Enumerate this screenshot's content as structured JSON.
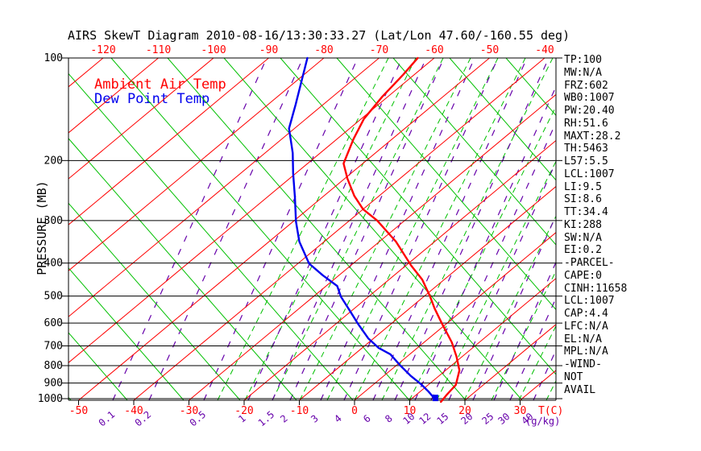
{
  "title": "AIRS SkewT Diagram 2010-08-16/13:30:33.27 (Lat/Lon 47.60/-160.55 deg)",
  "colors": {
    "red": "#ff0000",
    "green": "#00c000",
    "purple": "#6600aa",
    "blue": "#0000ee",
    "black": "#000000"
  },
  "legend": {
    "temp": "Ambient Air Temp",
    "dew": "Dew Point Temp"
  },
  "stats": {
    "lines": [
      "TP:100",
      "MW:N/A",
      "FRZ:602",
      "WB0:1007",
      "PW:20.40",
      "RH:51.6",
      "MAXT:28.2",
      "TH:5463",
      "L57:5.5",
      "LCL:1007",
      "LI:9.5",
      "SI:8.6",
      "TT:34.4",
      "KI:288",
      "SW:N/A",
      "EI:0.2",
      "-PARCEL-",
      "CAPE:0",
      "CINH:11658",
      "LCL:1007",
      "CAP:4.4",
      "LFC:N/A",
      "EL:N/A",
      "MPL:N/A",
      "-WIND-",
      "NOT",
      "AVAIL"
    ]
  },
  "chart_data": {
    "type": "line",
    "title": "AIRS SkewT Diagram 2010-08-16/13:30:33.27 (Lat/Lon 47.60/-160.55 deg)",
    "y_axis": {
      "label": "PRESSURE (MB)",
      "scale": "log",
      "ticks": [
        100,
        200,
        300,
        400,
        500,
        600,
        700,
        800,
        900,
        1000
      ],
      "ylim": [
        100,
        1022
      ]
    },
    "x_axis": {
      "unit_label": "T(C)",
      "top_ticks": [
        -120,
        -110,
        -100,
        -90,
        -80,
        -70,
        -60,
        -50,
        -40
      ],
      "bottom_ticks": [
        -50,
        -40,
        -30,
        -20,
        -10,
        0,
        10,
        20,
        30
      ]
    },
    "mixing_ratio": {
      "unit_label": "(g/kg)",
      "ticks": [
        {
          "value": 0.1,
          "x": 140
        },
        {
          "value": 0.2,
          "x": 185
        },
        {
          "value": 0.5,
          "x": 253
        },
        {
          "value": 1,
          "x": 308
        },
        {
          "value": 1.5,
          "x": 338
        },
        {
          "value": 2,
          "x": 360
        },
        {
          "value": 3,
          "x": 398
        },
        {
          "value": 4,
          "x": 427
        },
        {
          "value": 6,
          "x": 463
        },
        {
          "value": 8,
          "x": 490
        },
        {
          "value": 10,
          "x": 515
        },
        {
          "value": 12,
          "x": 535
        },
        {
          "value": 15,
          "x": 557
        },
        {
          "value": 20,
          "x": 587
        },
        {
          "value": 25,
          "x": 613
        },
        {
          "value": 30,
          "x": 633
        },
        {
          "value": 40,
          "x": 662
        }
      ]
    },
    "series": [
      {
        "name": "Ambient Air Temp",
        "color_key": "red",
        "point_format": [
          "pressure_mb",
          "temp_c"
        ],
        "points": [
          [
            100,
            -63
          ],
          [
            112,
            -62
          ],
          [
            130,
            -61
          ],
          [
            151,
            -59.5
          ],
          [
            173,
            -57
          ],
          [
            204,
            -53.5
          ],
          [
            226,
            -49.5
          ],
          [
            254,
            -44.5
          ],
          [
            278,
            -40
          ],
          [
            300,
            -35
          ],
          [
            346,
            -27
          ],
          [
            407,
            -19
          ],
          [
            447,
            -14
          ],
          [
            500,
            -9
          ],
          [
            543,
            -5.5
          ],
          [
            600,
            -1
          ],
          [
            683,
            5
          ],
          [
            753,
            9
          ],
          [
            826,
            12.5
          ],
          [
            911,
            15
          ],
          [
            973,
            15.5
          ],
          [
            1022,
            16
          ]
        ]
      },
      {
        "name": "Dew Point Temp",
        "color_key": "blue",
        "point_format": [
          "pressure_mb",
          "temp_c"
        ],
        "points": [
          [
            100,
            -83
          ],
          [
            117,
            -79
          ],
          [
            137,
            -75
          ],
          [
            161,
            -71
          ],
          [
            190,
            -65
          ],
          [
            218,
            -60.5
          ],
          [
            256,
            -55
          ],
          [
            302,
            -49.5
          ],
          [
            346,
            -44.5
          ],
          [
            401,
            -38
          ],
          [
            434,
            -33
          ],
          [
            467,
            -28
          ],
          [
            502,
            -25
          ],
          [
            550,
            -20.5
          ],
          [
            603,
            -16
          ],
          [
            665,
            -11
          ],
          [
            710,
            -7
          ],
          [
            741,
            -3.5
          ],
          [
            796,
            0.5
          ],
          [
            859,
            5
          ],
          [
            906,
            8.5
          ],
          [
            953,
            11.5
          ],
          [
            1006,
            14.5
          ]
        ]
      }
    ]
  }
}
